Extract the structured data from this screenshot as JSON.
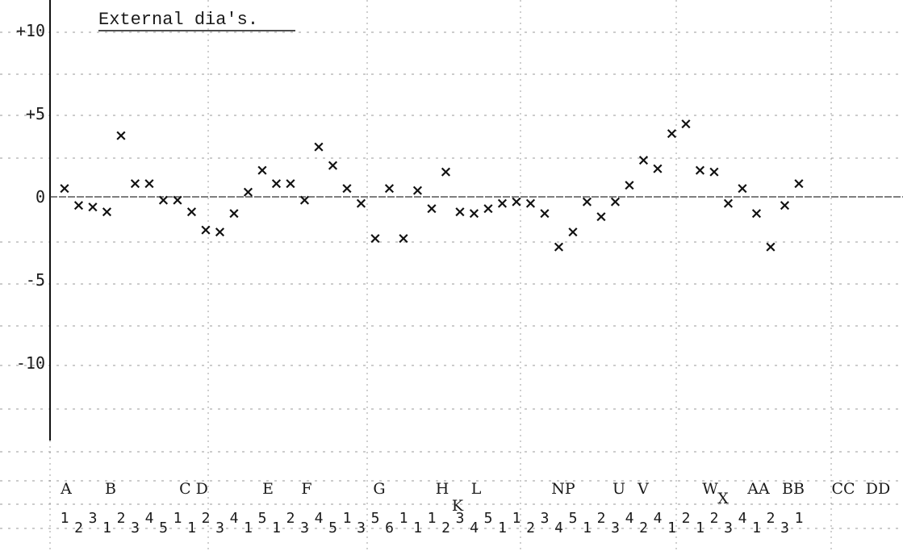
{
  "chart_data": {
    "type": "scatter",
    "title": "External dia's.",
    "xlabel": "",
    "ylabel": "",
    "ylim": [
      -14,
      11
    ],
    "y_ticks": [
      "+10",
      "+5",
      "0",
      "-5",
      "-10"
    ],
    "y_tick_values": [
      10,
      5,
      0,
      -5,
      -10
    ],
    "grid": true,
    "marker": "x",
    "series": [
      {
        "values": [
          0.5,
          -0.5,
          -0.6,
          -0.9,
          3.7,
          0.8,
          0.8,
          -0.2,
          -0.2,
          -0.9,
          -2.0,
          -2.1,
          -1.0,
          0.3,
          1.6,
          0.8,
          0.8,
          -0.2,
          3.0,
          1.9,
          0.5,
          -0.4,
          -2.5,
          0.5,
          -2.5,
          0.4,
          -0.7,
          1.5,
          -0.9,
          -1.0,
          -0.7,
          -0.4,
          -0.3,
          -0.4,
          -1.0,
          -3.0,
          -2.1,
          -0.3,
          -1.2,
          -0.3,
          0.7,
          2.2,
          1.7,
          3.8,
          4.4,
          1.6,
          1.5,
          -0.4,
          0.5,
          -1.0,
          -3.0,
          -0.5,
          0.8
        ]
      }
    ],
    "category_labels": [
      "A",
      "B",
      "C D",
      "E",
      "F",
      "G",
      "H",
      "K",
      "L",
      "NP",
      "U",
      "V",
      "W",
      "X",
      "AA",
      "BB",
      "CC",
      "DD"
    ],
    "sub_labels": [
      "1",
      "2",
      "3",
      "1",
      "2",
      "3",
      "4",
      "5",
      "1",
      "1",
      "2",
      "3",
      "4",
      "1",
      "5",
      "1",
      "2",
      "3",
      "4",
      "5",
      "1",
      "3",
      "5",
      "6",
      "1",
      "1",
      "1",
      "2",
      "3",
      "4",
      "5",
      "1",
      "1",
      "2",
      "3",
      "4",
      "5",
      "1",
      "2",
      "3",
      "4",
      "2",
      "4",
      "1",
      "2",
      "1",
      "2",
      "3",
      "4",
      "1",
      "2",
      "3",
      "1"
    ]
  }
}
